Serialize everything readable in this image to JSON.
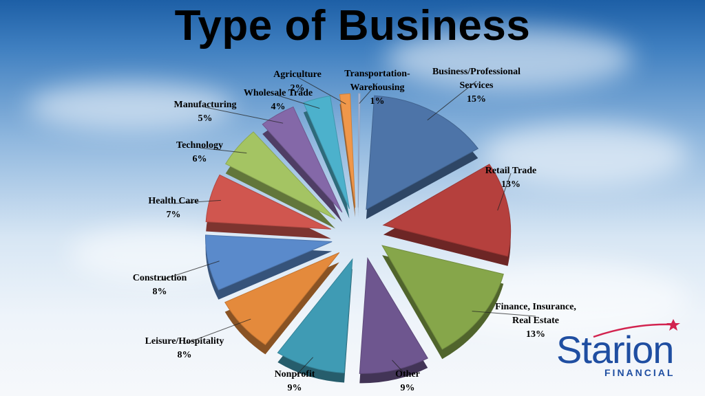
{
  "chart_data": {
    "type": "pie",
    "title": "Type of Business",
    "slices": [
      {
        "label": "Business/Professional Services",
        "label_lines": [
          "Business/Professional",
          "Services"
        ],
        "value": 15,
        "display": "15%",
        "color": "#4d74a8"
      },
      {
        "label": "Retail Trade",
        "label_lines": [
          "Retail Trade"
        ],
        "value": 13,
        "display": "13%",
        "color": "#b5403d"
      },
      {
        "label": "Finance, Insurance, Real Estate",
        "label_lines": [
          "Finance, Insurance,",
          "Real Estate"
        ],
        "value": 13,
        "display": "13%",
        "color": "#86a64a"
      },
      {
        "label": "Other",
        "label_lines": [
          "Other"
        ],
        "value": 9,
        "display": "9%",
        "color": "#6e568f"
      },
      {
        "label": "Nonprofit",
        "label_lines": [
          "Nonprofit"
        ],
        "value": 9,
        "display": "9%",
        "color": "#3f9bb4"
      },
      {
        "label": "Leisure/Hospitality",
        "label_lines": [
          "Leisure/Hospitality"
        ],
        "value": 8,
        "display": "8%",
        "color": "#e48a3c"
      },
      {
        "label": "Construction",
        "label_lines": [
          "Construction"
        ],
        "value": 8,
        "display": "8%",
        "color": "#5a8acb"
      },
      {
        "label": "Health Care",
        "label_lines": [
          "Health Care"
        ],
        "value": 7,
        "display": "7%",
        "color": "#d0564f"
      },
      {
        "label": "Technology",
        "label_lines": [
          "Technology"
        ],
        "value": 6,
        "display": "6%",
        "color": "#a4c463"
      },
      {
        "label": "Manufacturing",
        "label_lines": [
          "Manufacturing"
        ],
        "value": 5,
        "display": "5%",
        "color": "#8468a8"
      },
      {
        "label": "Wholesale Trade",
        "label_lines": [
          "Wholesale Trade"
        ],
        "value": 4,
        "display": "4%",
        "color": "#4cb1cc"
      },
      {
        "label": "Agriculture",
        "label_lines": [
          "Agriculture"
        ],
        "value": 2,
        "display": "2%",
        "color": "#f0974a"
      },
      {
        "label": "Transportation-Warehousing",
        "label_lines": [
          "Transportation-",
          "Warehousing"
        ],
        "value": 1,
        "display": "1%",
        "color": "#a9bde0"
      }
    ],
    "legend": "none",
    "label_style": "outside with leader lines"
  },
  "logo": {
    "word": "Starion",
    "subtitle": "FINANCIAL",
    "colors": {
      "primary": "#1f4ea1",
      "accent": "#d2234f"
    }
  }
}
